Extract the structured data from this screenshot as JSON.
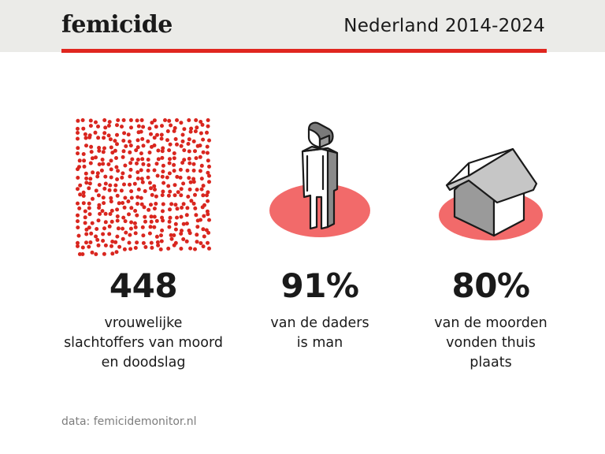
{
  "header": {
    "logo": "femicide",
    "period": "Nederland 2014-2024"
  },
  "colors": {
    "accent": "#e0261f",
    "dot": "#d9261f",
    "ellipse": "#f26a6a",
    "header_bg": "#ebebe8"
  },
  "stats": [
    {
      "icon": "dots-grid-icon",
      "value": "448",
      "label_lines": [
        "vrouwelijke",
        "slachtoffers van moord",
        "en doodslag"
      ],
      "dot_count": 448
    },
    {
      "icon": "person-icon",
      "value": "91%",
      "label_lines": [
        "van de daders",
        "is man"
      ]
    },
    {
      "icon": "house-icon",
      "value": "80%",
      "label_lines": [
        "van de moorden",
        "vonden thuis",
        "plaats"
      ]
    }
  ],
  "source": "data: femicidemonitor.nl"
}
